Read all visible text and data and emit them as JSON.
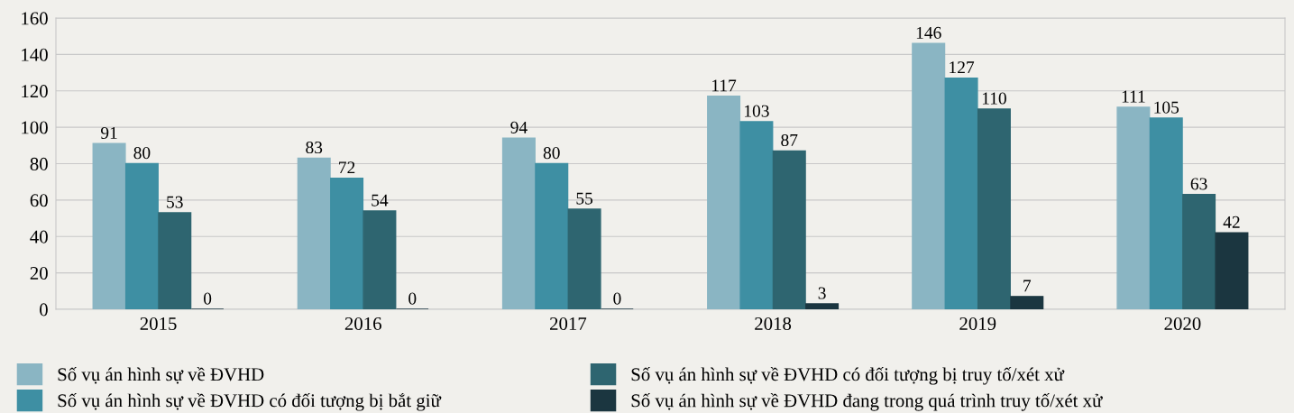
{
  "chart_data": {
    "type": "bar",
    "categories": [
      "2015",
      "2016",
      "2017",
      "2018",
      "2019",
      "2020"
    ],
    "series": [
      {
        "name": "Số vụ án hình sự về ĐVHD",
        "color": "#8ab5c3",
        "values": [
          91,
          83,
          94,
          117,
          146,
          111
        ]
      },
      {
        "name": "Số vụ án hình sự về ĐVHD có đối tượng bị bắt giữ",
        "color": "#3e8fa3",
        "values": [
          80,
          72,
          80,
          103,
          127,
          105
        ]
      },
      {
        "name": "Số vụ án hình sự về ĐVHD có đối tượng bị truy tố/xét xử",
        "color": "#2e6570",
        "values": [
          53,
          54,
          55,
          87,
          110,
          63
        ]
      },
      {
        "name": "Số vụ án hình sự về ĐVHD đang trong quá trình truy tố/xét xử",
        "color": "#1b3640",
        "values": [
          0,
          0,
          0,
          3,
          7,
          42
        ]
      }
    ],
    "ylim": [
      0,
      160
    ],
    "yticks": [
      0,
      20,
      40,
      60,
      80,
      100,
      120,
      140,
      160
    ],
    "grid": "y",
    "legend": "bottom",
    "data_labels": true
  }
}
